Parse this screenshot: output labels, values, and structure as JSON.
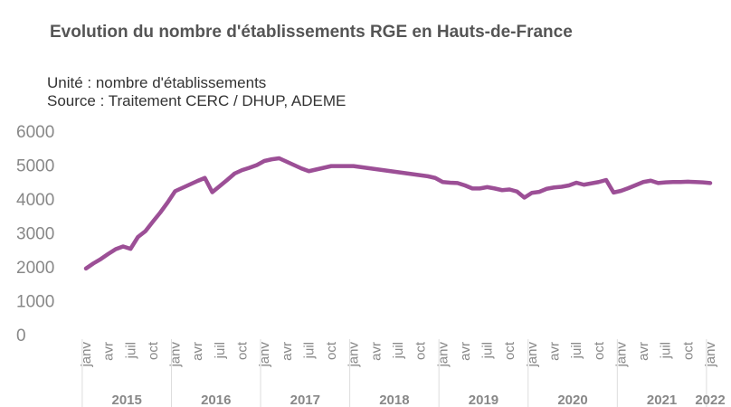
{
  "chart_data": {
    "type": "line",
    "title": "Evolution du nombre d'établissements RGE en Hauts-de-France",
    "subtitle": "Unité : nombre d'établissements",
    "source": "Source : Traitement CERC / DHUP, ADEME",
    "categories": [
      "janv",
      null,
      null,
      "avr",
      null,
      null,
      "juil",
      null,
      null,
      "oct",
      null,
      null,
      "janv",
      null,
      null,
      "avr",
      null,
      null,
      "juil",
      null,
      null,
      "oct",
      null,
      null,
      "janv",
      null,
      null,
      "avr",
      null,
      null,
      "juil",
      null,
      null,
      "oct",
      null,
      null,
      "janv",
      null,
      null,
      "avr",
      null,
      null,
      "juil",
      null,
      null,
      "oct",
      null,
      null,
      "janv",
      null,
      null,
      "avr",
      null,
      null,
      "juil",
      null,
      null,
      "oct",
      null,
      null,
      "janv",
      null,
      null,
      "avr",
      null,
      null,
      "juil",
      null,
      null,
      "oct",
      null,
      null,
      "janv",
      null,
      null,
      "avr",
      null,
      null,
      "juil",
      null,
      null,
      "oct",
      null,
      null,
      "janv"
    ],
    "years": [
      "2015",
      "2016",
      "2017",
      "2018",
      "2019",
      "2020",
      "2021",
      "2022"
    ],
    "series": [
      {
        "name": "nombre d'établissements",
        "color": "#9c4f96",
        "values": [
          1950,
          2100,
          2230,
          2380,
          2520,
          2600,
          2530,
          2880,
          3050,
          3330,
          3600,
          3900,
          4230,
          4330,
          4430,
          4530,
          4620,
          4200,
          4380,
          4560,
          4750,
          4850,
          4920,
          5000,
          5120,
          5170,
          5200,
          5100,
          5000,
          4900,
          4820,
          4870,
          4920,
          4970,
          4970,
          4970,
          4970,
          4940,
          4910,
          4880,
          4850,
          4820,
          4790,
          4760,
          4730,
          4700,
          4670,
          4620,
          4500,
          4480,
          4470,
          4400,
          4310,
          4310,
          4350,
          4310,
          4260,
          4280,
          4220,
          4040,
          4180,
          4210,
          4300,
          4340,
          4360,
          4400,
          4480,
          4420,
          4460,
          4500,
          4560,
          4190,
          4240,
          4320,
          4410,
          4500,
          4540,
          4470,
          4490,
          4500,
          4500,
          4510,
          4500,
          4490,
          4470
        ]
      }
    ],
    "ylim": [
      0,
      6000
    ],
    "yticks": [
      0,
      1000,
      2000,
      3000,
      4000,
      5000,
      6000
    ],
    "grid": false
  }
}
